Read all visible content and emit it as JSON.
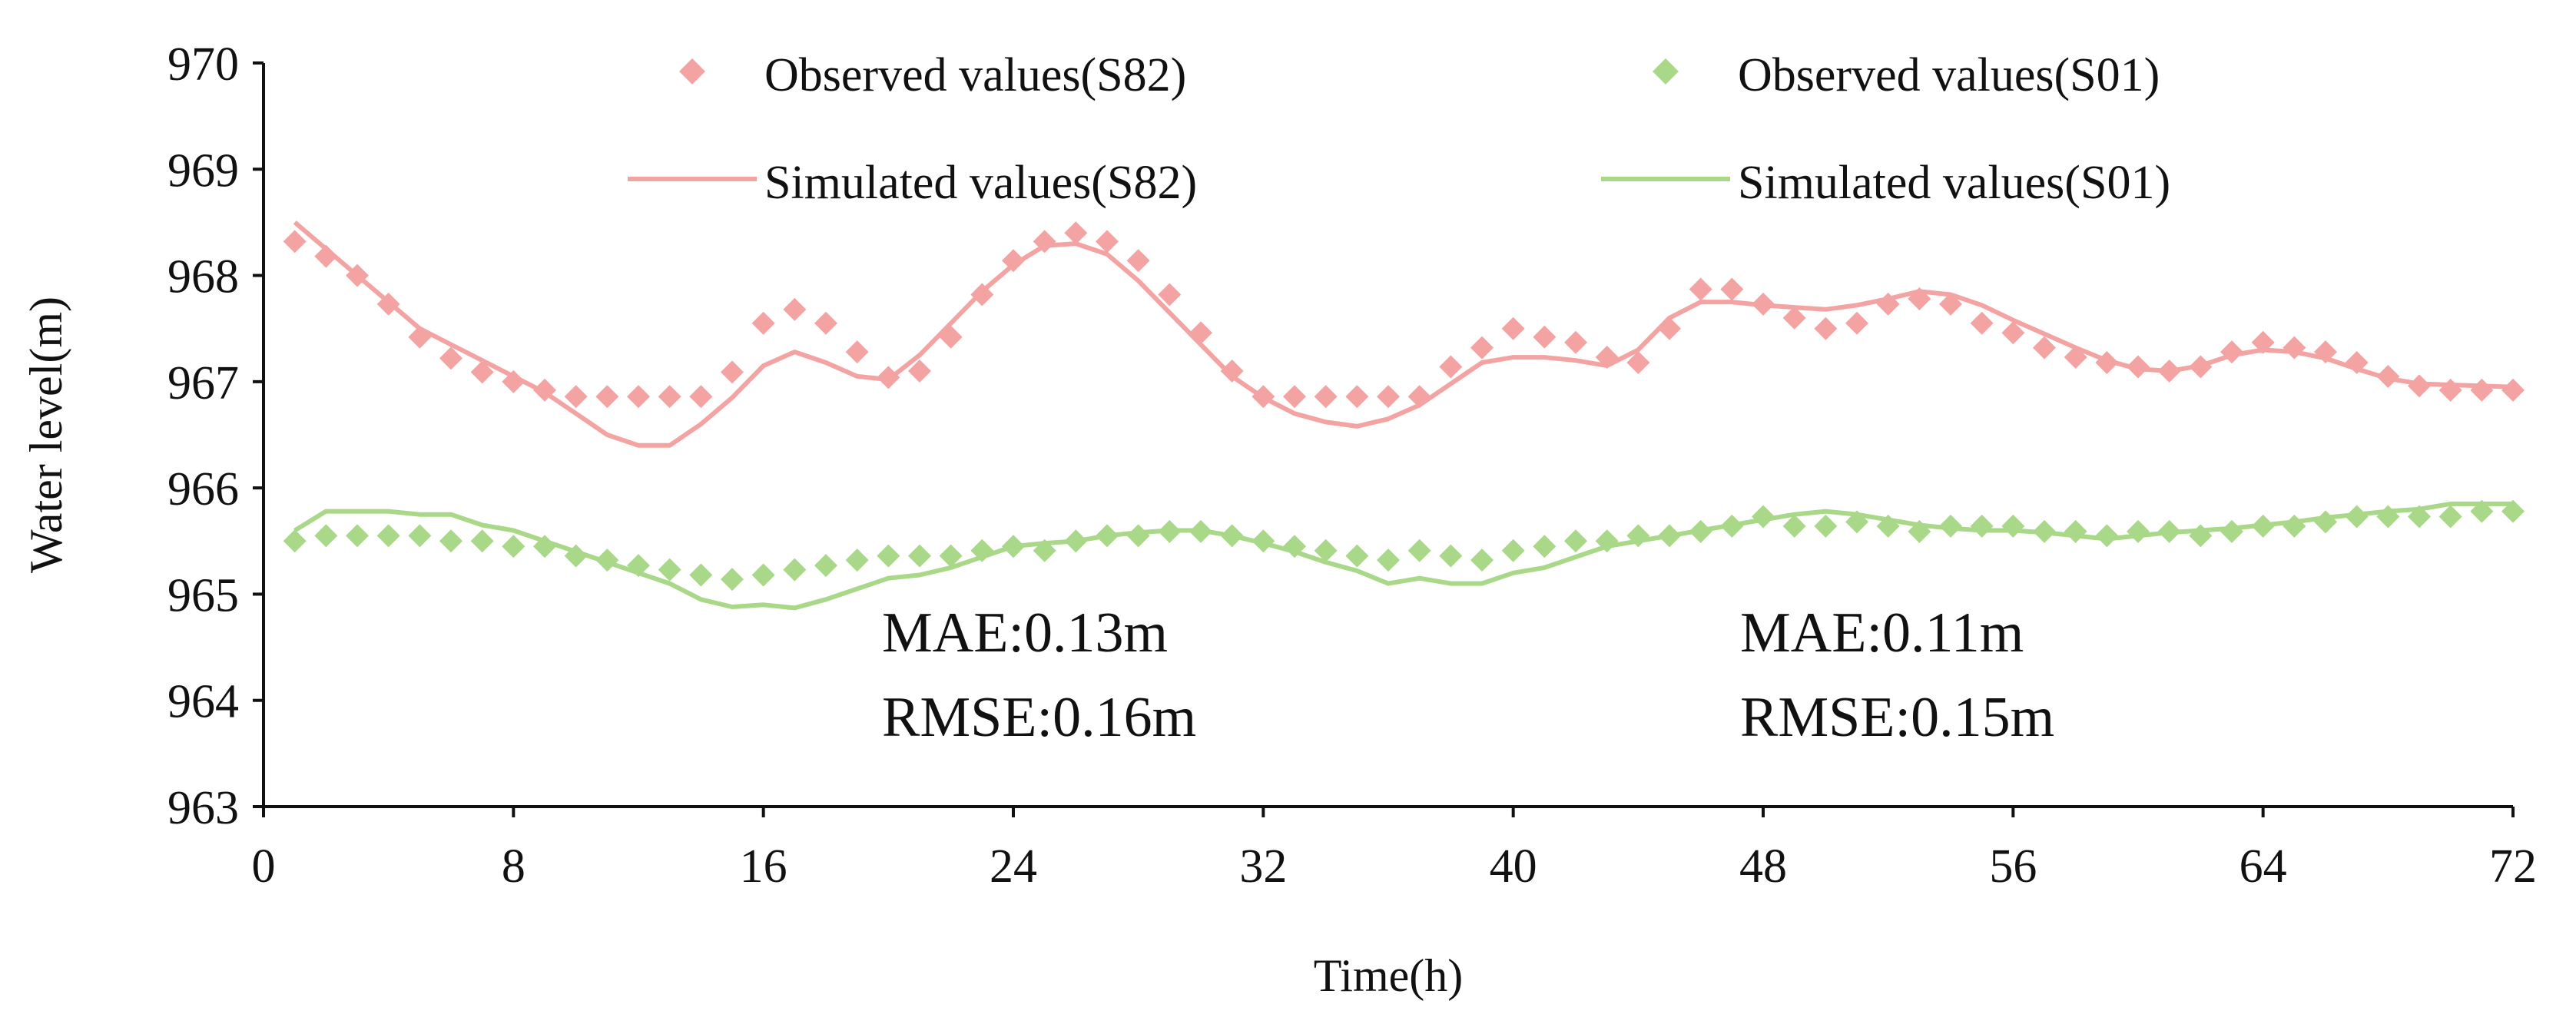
{
  "chart_data": {
    "type": "line",
    "title": "",
    "xlabel": "Time(h)",
    "ylabel": "Water level(m)",
    "xlim": [
      0,
      72
    ],
    "ylim": [
      963,
      970
    ],
    "xticks": [
      0,
      8,
      16,
      24,
      32,
      40,
      48,
      56,
      64,
      72
    ],
    "yticks": [
      963,
      964,
      965,
      966,
      967,
      968,
      969,
      970
    ],
    "grid": false,
    "legend_position": "top",
    "series": [
      {
        "name": "Observed values(S82)",
        "kind": "marker",
        "marker": "diamond",
        "color": "#F4A3A3",
        "x": [
          1,
          2,
          3,
          4,
          5,
          6,
          7,
          8,
          9,
          10,
          11,
          12,
          13,
          14,
          15,
          16,
          17,
          18,
          19,
          20,
          21,
          22,
          23,
          24,
          25,
          26,
          27,
          28,
          29,
          30,
          31,
          32,
          33,
          34,
          35,
          36,
          37,
          38,
          39,
          40,
          41,
          42,
          43,
          44,
          45,
          46,
          47,
          48,
          49,
          50,
          51,
          52,
          53,
          54,
          55,
          56,
          57,
          58,
          59,
          60,
          61,
          62,
          63,
          64,
          65,
          66,
          67,
          68,
          69,
          70,
          71,
          72
        ],
        "y": [
          968.32,
          968.18,
          968.0,
          967.73,
          967.42,
          967.22,
          967.09,
          967.0,
          966.92,
          966.86,
          966.86,
          966.86,
          966.86,
          966.86,
          967.09,
          967.55,
          967.68,
          967.55,
          967.28,
          967.04,
          967.1,
          967.42,
          967.82,
          968.14,
          968.32,
          968.4,
          968.32,
          968.14,
          967.82,
          967.46,
          967.1,
          966.86,
          966.86,
          966.86,
          966.86,
          966.86,
          966.86,
          967.14,
          967.32,
          967.5,
          967.42,
          967.37,
          967.23,
          967.18,
          967.5,
          967.87,
          967.87,
          967.73,
          967.6,
          967.5,
          967.55,
          967.73,
          967.78,
          967.73,
          967.55,
          967.46,
          967.32,
          967.23,
          967.18,
          967.14,
          967.1,
          967.14,
          967.28,
          967.37,
          967.32,
          967.28,
          967.18,
          967.05,
          966.96,
          966.92,
          966.92,
          966.92
        ]
      },
      {
        "name": "Simulated values(S82)",
        "kind": "line",
        "color": "#F4A3A3",
        "x": [
          1,
          2,
          3,
          4,
          5,
          6,
          7,
          8,
          9,
          10,
          11,
          12,
          13,
          14,
          15,
          16,
          17,
          18,
          19,
          20,
          21,
          22,
          23,
          24,
          25,
          26,
          27,
          28,
          29,
          30,
          31,
          32,
          33,
          34,
          35,
          36,
          37,
          38,
          39,
          40,
          41,
          42,
          43,
          44,
          45,
          46,
          47,
          48,
          49,
          50,
          51,
          52,
          53,
          54,
          55,
          56,
          57,
          58,
          59,
          60,
          61,
          62,
          63,
          64,
          65,
          66,
          67,
          68,
          69,
          70,
          71,
          72
        ],
        "y": [
          968.5,
          968.25,
          968.0,
          967.75,
          967.5,
          967.35,
          967.2,
          967.05,
          966.9,
          966.7,
          966.5,
          966.4,
          966.4,
          966.6,
          966.85,
          967.15,
          967.28,
          967.18,
          967.05,
          967.02,
          967.25,
          967.55,
          967.85,
          968.1,
          968.28,
          968.3,
          968.2,
          967.95,
          967.65,
          967.35,
          967.05,
          966.85,
          966.7,
          966.62,
          966.58,
          966.65,
          966.78,
          966.98,
          967.18,
          967.23,
          967.23,
          967.2,
          967.15,
          967.3,
          967.6,
          967.75,
          967.75,
          967.72,
          967.7,
          967.68,
          967.72,
          967.78,
          967.85,
          967.82,
          967.72,
          967.58,
          967.45,
          967.32,
          967.2,
          967.12,
          967.1,
          967.15,
          967.25,
          967.3,
          967.28,
          967.22,
          967.12,
          967.03,
          966.98,
          966.97,
          966.96,
          966.95
        ]
      },
      {
        "name": "Observed values(S01)",
        "kind": "marker",
        "marker": "diamond",
        "color": "#A8D888",
        "x": [
          1,
          2,
          3,
          4,
          5,
          6,
          7,
          8,
          9,
          10,
          11,
          12,
          13,
          14,
          15,
          16,
          17,
          18,
          19,
          20,
          21,
          22,
          23,
          24,
          25,
          26,
          27,
          28,
          29,
          30,
          31,
          32,
          33,
          34,
          35,
          36,
          37,
          38,
          39,
          40,
          41,
          42,
          43,
          44,
          45,
          46,
          47,
          48,
          49,
          50,
          51,
          52,
          53,
          54,
          55,
          56,
          57,
          58,
          59,
          60,
          61,
          62,
          63,
          64,
          65,
          66,
          67,
          68,
          69,
          70,
          71,
          72
        ],
        "y": [
          965.5,
          965.55,
          965.55,
          965.55,
          965.55,
          965.5,
          965.5,
          965.45,
          965.45,
          965.36,
          965.32,
          965.27,
          965.23,
          965.18,
          965.14,
          965.18,
          965.23,
          965.27,
          965.32,
          965.36,
          965.36,
          965.36,
          965.41,
          965.45,
          965.41,
          965.5,
          965.55,
          965.55,
          965.59,
          965.59,
          965.55,
          965.5,
          965.45,
          965.41,
          965.36,
          965.32,
          965.41,
          965.36,
          965.32,
          965.41,
          965.45,
          965.5,
          965.5,
          965.55,
          965.55,
          965.59,
          965.64,
          965.73,
          965.64,
          965.64,
          965.68,
          965.64,
          965.59,
          965.64,
          965.64,
          965.64,
          965.59,
          965.59,
          965.55,
          965.59,
          965.59,
          965.55,
          965.59,
          965.64,
          965.64,
          965.68,
          965.73,
          965.73,
          965.73,
          965.73,
          965.78,
          965.78
        ]
      },
      {
        "name": "Simulated values(S01)",
        "kind": "line",
        "color": "#A8D888",
        "x": [
          1,
          2,
          3,
          4,
          5,
          6,
          7,
          8,
          9,
          10,
          11,
          12,
          13,
          14,
          15,
          16,
          17,
          18,
          19,
          20,
          21,
          22,
          23,
          24,
          25,
          26,
          27,
          28,
          29,
          30,
          31,
          32,
          33,
          34,
          35,
          36,
          37,
          38,
          39,
          40,
          41,
          42,
          43,
          44,
          45,
          46,
          47,
          48,
          49,
          50,
          51,
          52,
          53,
          54,
          55,
          56,
          57,
          58,
          59,
          60,
          61,
          62,
          63,
          64,
          65,
          66,
          67,
          68,
          69,
          70,
          71,
          72
        ],
        "y": [
          965.6,
          965.78,
          965.78,
          965.78,
          965.75,
          965.75,
          965.65,
          965.6,
          965.5,
          965.4,
          965.3,
          965.2,
          965.1,
          964.95,
          964.88,
          964.9,
          964.87,
          964.95,
          965.05,
          965.15,
          965.18,
          965.25,
          965.35,
          965.45,
          965.48,
          965.5,
          965.55,
          965.58,
          965.6,
          965.6,
          965.55,
          965.48,
          965.4,
          965.3,
          965.22,
          965.1,
          965.15,
          965.1,
          965.1,
          965.2,
          965.25,
          965.35,
          965.45,
          965.5,
          965.55,
          965.6,
          965.65,
          965.7,
          965.75,
          965.78,
          965.75,
          965.7,
          965.65,
          965.62,
          965.6,
          965.6,
          965.58,
          965.55,
          965.52,
          965.55,
          965.58,
          965.6,
          965.62,
          965.65,
          965.68,
          965.72,
          965.75,
          965.78,
          965.8,
          965.85,
          965.85,
          965.85
        ]
      }
    ],
    "annotations": [
      {
        "id": "s82_mae",
        "text": "MAE:0.13m",
        "color": "#F4A3A3"
      },
      {
        "id": "s82_rmse",
        "text": "RMSE:0.16m",
        "color": "#F4A3A3"
      },
      {
        "id": "s01_mae",
        "text": "MAE:0.11m",
        "color": "#A8D888"
      },
      {
        "id": "s01_rmse",
        "text": "RMSE:0.15m",
        "color": "#A8D888"
      }
    ]
  }
}
